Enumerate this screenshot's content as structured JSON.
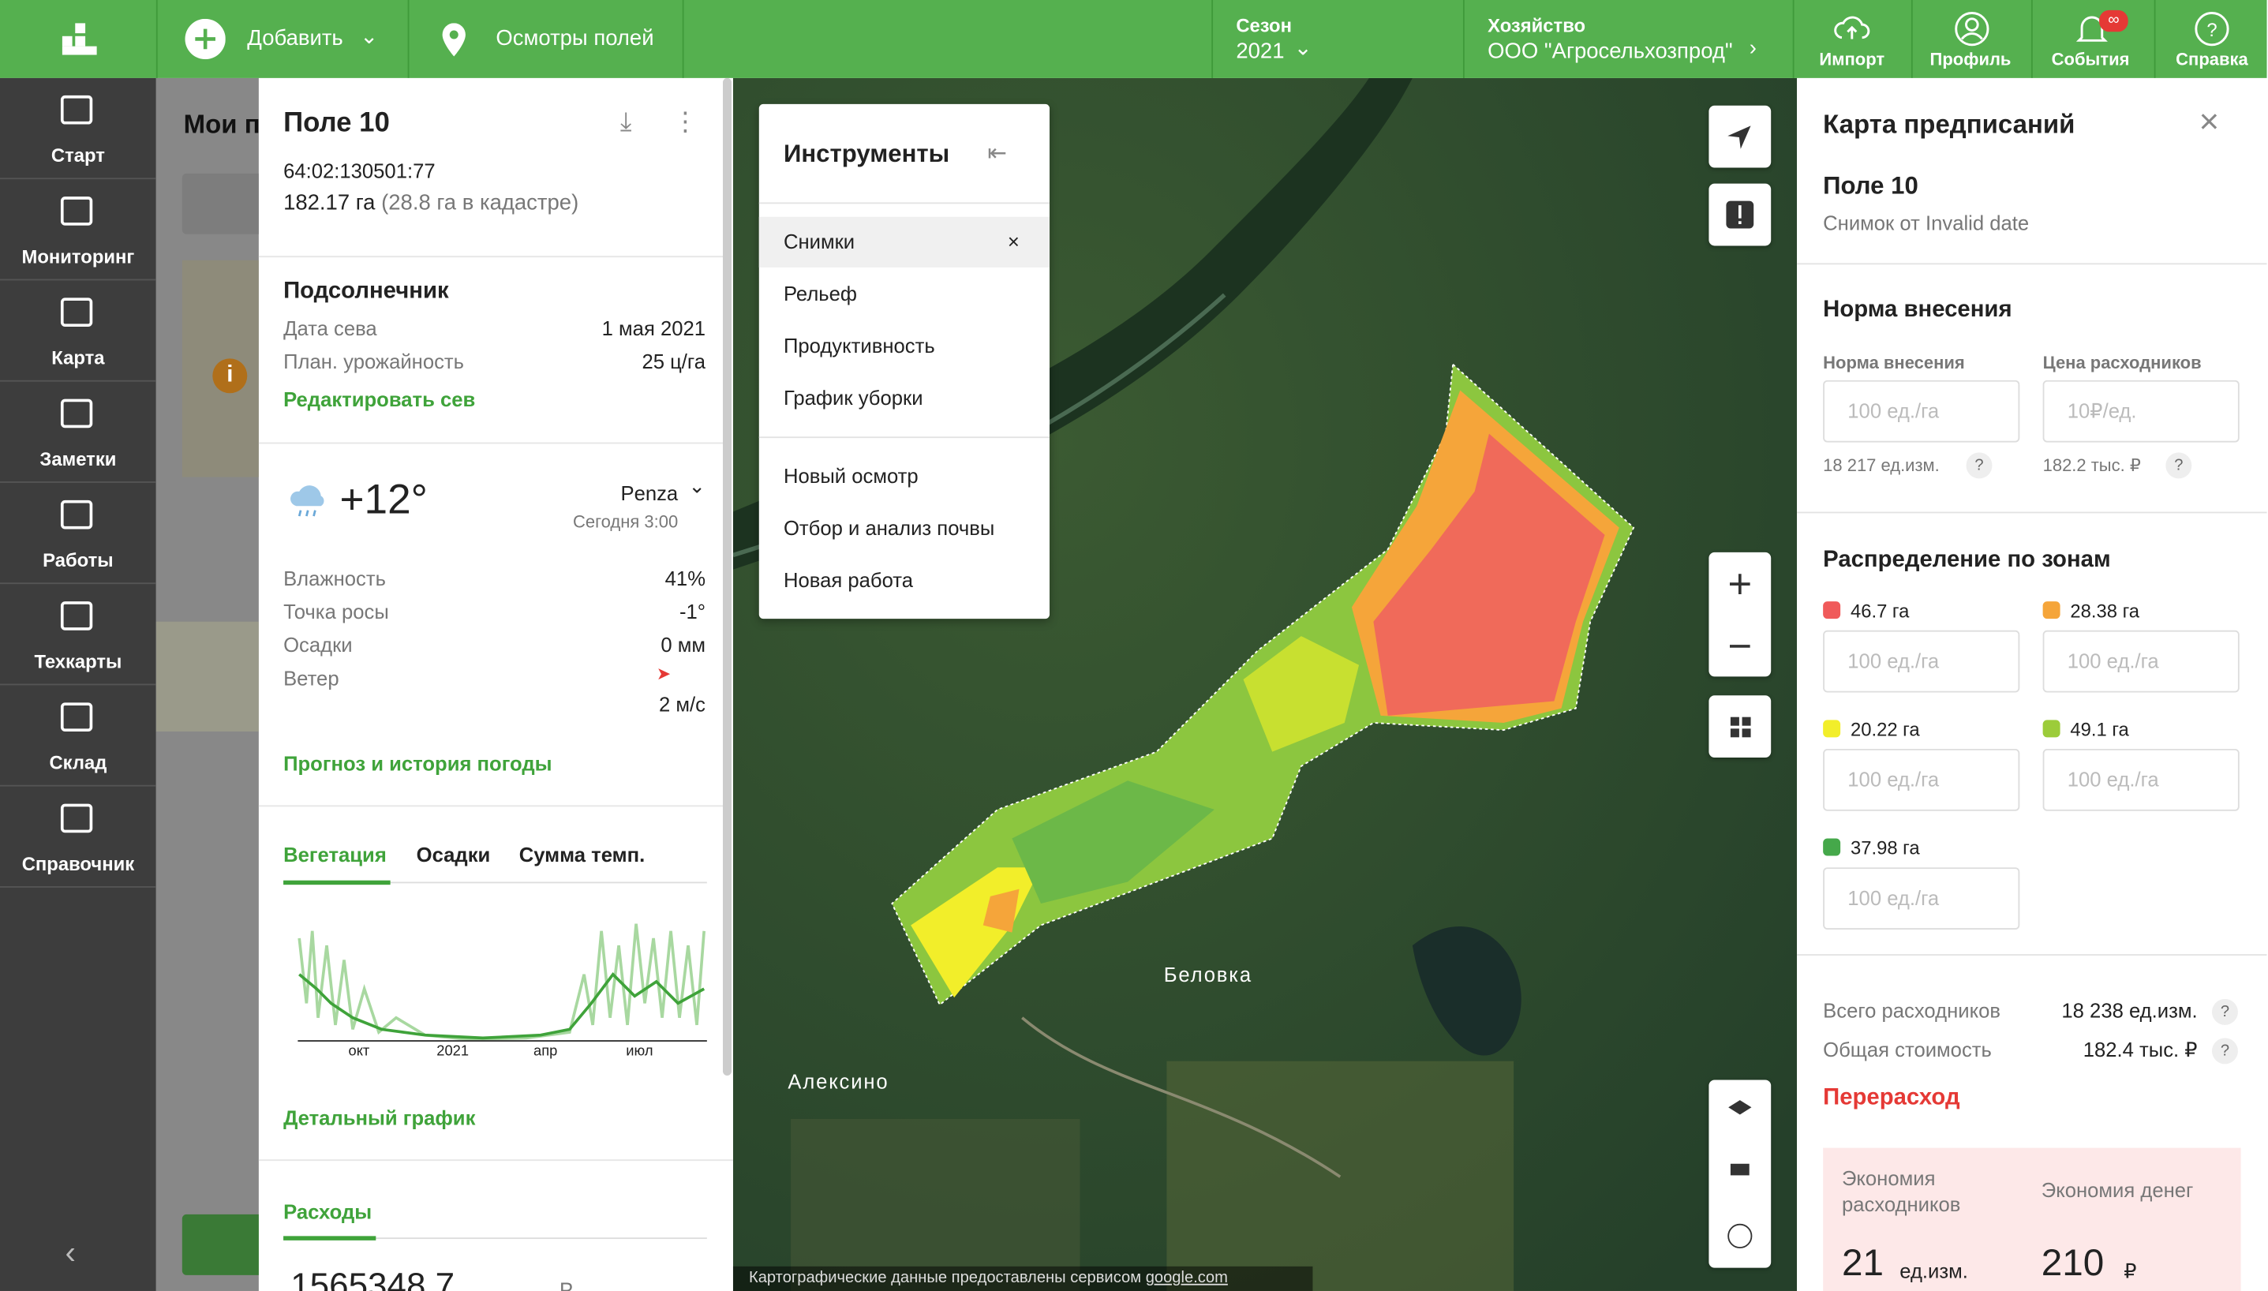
{
  "top_bar": {
    "add": "Добавить",
    "inspections": "Осмотры полей",
    "season_label": "Сезон",
    "season": "2021",
    "farm_label": "Хозяйство",
    "farm": "ООО \"Агросельхозпрод\"",
    "import": "Импорт",
    "profile": "Профиль",
    "events": "События",
    "events_badge": "∞",
    "help": "Справка"
  },
  "sidebar": {
    "items": [
      "Старт",
      "Мониторинг",
      "Карта",
      "Заметки",
      "Работы",
      "Техкарты",
      "Склад",
      "Справочник"
    ]
  },
  "behind_panel": {
    "title": "Мои п"
  },
  "field_panel": {
    "title": "Поле 10",
    "cadastral": "64:02:130501:77",
    "area": "182.17 га",
    "area_note": "(28.8 га в кадастре)",
    "crop": "Подсолнечник",
    "sowing_date_label": "Дата сева",
    "sowing_date": "1 мая 2021",
    "yield_label": "План. урожайность",
    "yield": "25 ц/га",
    "edit_sowing": "Редактировать сев",
    "weather": {
      "temp": "+12°",
      "location": "Penza",
      "time": "Сегодня 3:00",
      "rows": [
        {
          "label": "Влажность",
          "value": "41%"
        },
        {
          "label": "Точка росы",
          "value": "-1°"
        },
        {
          "label": "Осадки",
          "value": "0 мм"
        },
        {
          "label": "Ветер",
          "value": "2 м/с"
        }
      ],
      "forecast_link": "Прогноз и история погоды"
    },
    "tabs": [
      "Вегетация",
      "Осадки",
      "Сумма темп."
    ],
    "chart_ticks": [
      "окт",
      "2021",
      "апр",
      "июл"
    ],
    "detail_link": "Детальный график",
    "expenses_tab": "Расходы",
    "expenses_value": "1565348.7",
    "expenses_unit": "Р"
  },
  "tools": {
    "title": "Инструменты",
    "items": [
      "Снимки",
      "Рельеф",
      "Продуктивность",
      "График уборки"
    ],
    "close": "×",
    "actions": [
      "Новый осмотр",
      "Отбор и анализ почвы",
      "Новая работа"
    ]
  },
  "map": {
    "places": [
      "Беловка",
      "Алексино"
    ],
    "attribution_prefix": "Картографические данные предоставлены сервисом",
    "attribution_link": "google.com"
  },
  "prescription": {
    "title": "Карта предписаний",
    "field": "Поле 10",
    "snapshot": "Снимок от Invalid date",
    "rate_section": "Норма внесения",
    "rate_label": "Норма внесения",
    "price_label": "Цена расходников",
    "rate_placeholder": "100 ед./га",
    "price_placeholder": "10₽/ед.",
    "rate_total": "18 217 ед.изм.",
    "price_total": "182.2 тыс. ₽",
    "help": "?",
    "zones_title": "Распределение по зонам",
    "zones": [
      {
        "area": "46.7 га",
        "color": "#f05a5a",
        "placeholder": "100 ед./га"
      },
      {
        "area": "28.38 га",
        "color": "#f5a53a",
        "placeholder": "100 ед./га"
      },
      {
        "area": "20.22 га",
        "color": "#f2ee2a",
        "placeholder": "100 ед./га"
      },
      {
        "area": "49.1 га",
        "color": "#9ccc3a",
        "placeholder": "100 ед./га"
      },
      {
        "area": "37.98 га",
        "color": "#45a84a",
        "placeholder": "100 ед./га"
      }
    ],
    "total_label": "Всего расходников",
    "total_value": "18 238 ед.изм.",
    "cost_label": "Общая стоимость",
    "cost_value": "182.4 тыс. ₽",
    "overspend": "Перерасход",
    "savings_label": "Экономия расходников",
    "savings_value": "21",
    "savings_unit": "ед.изм.",
    "money_label": "Экономия денег",
    "money_value": "210",
    "money_unit": "₽"
  }
}
